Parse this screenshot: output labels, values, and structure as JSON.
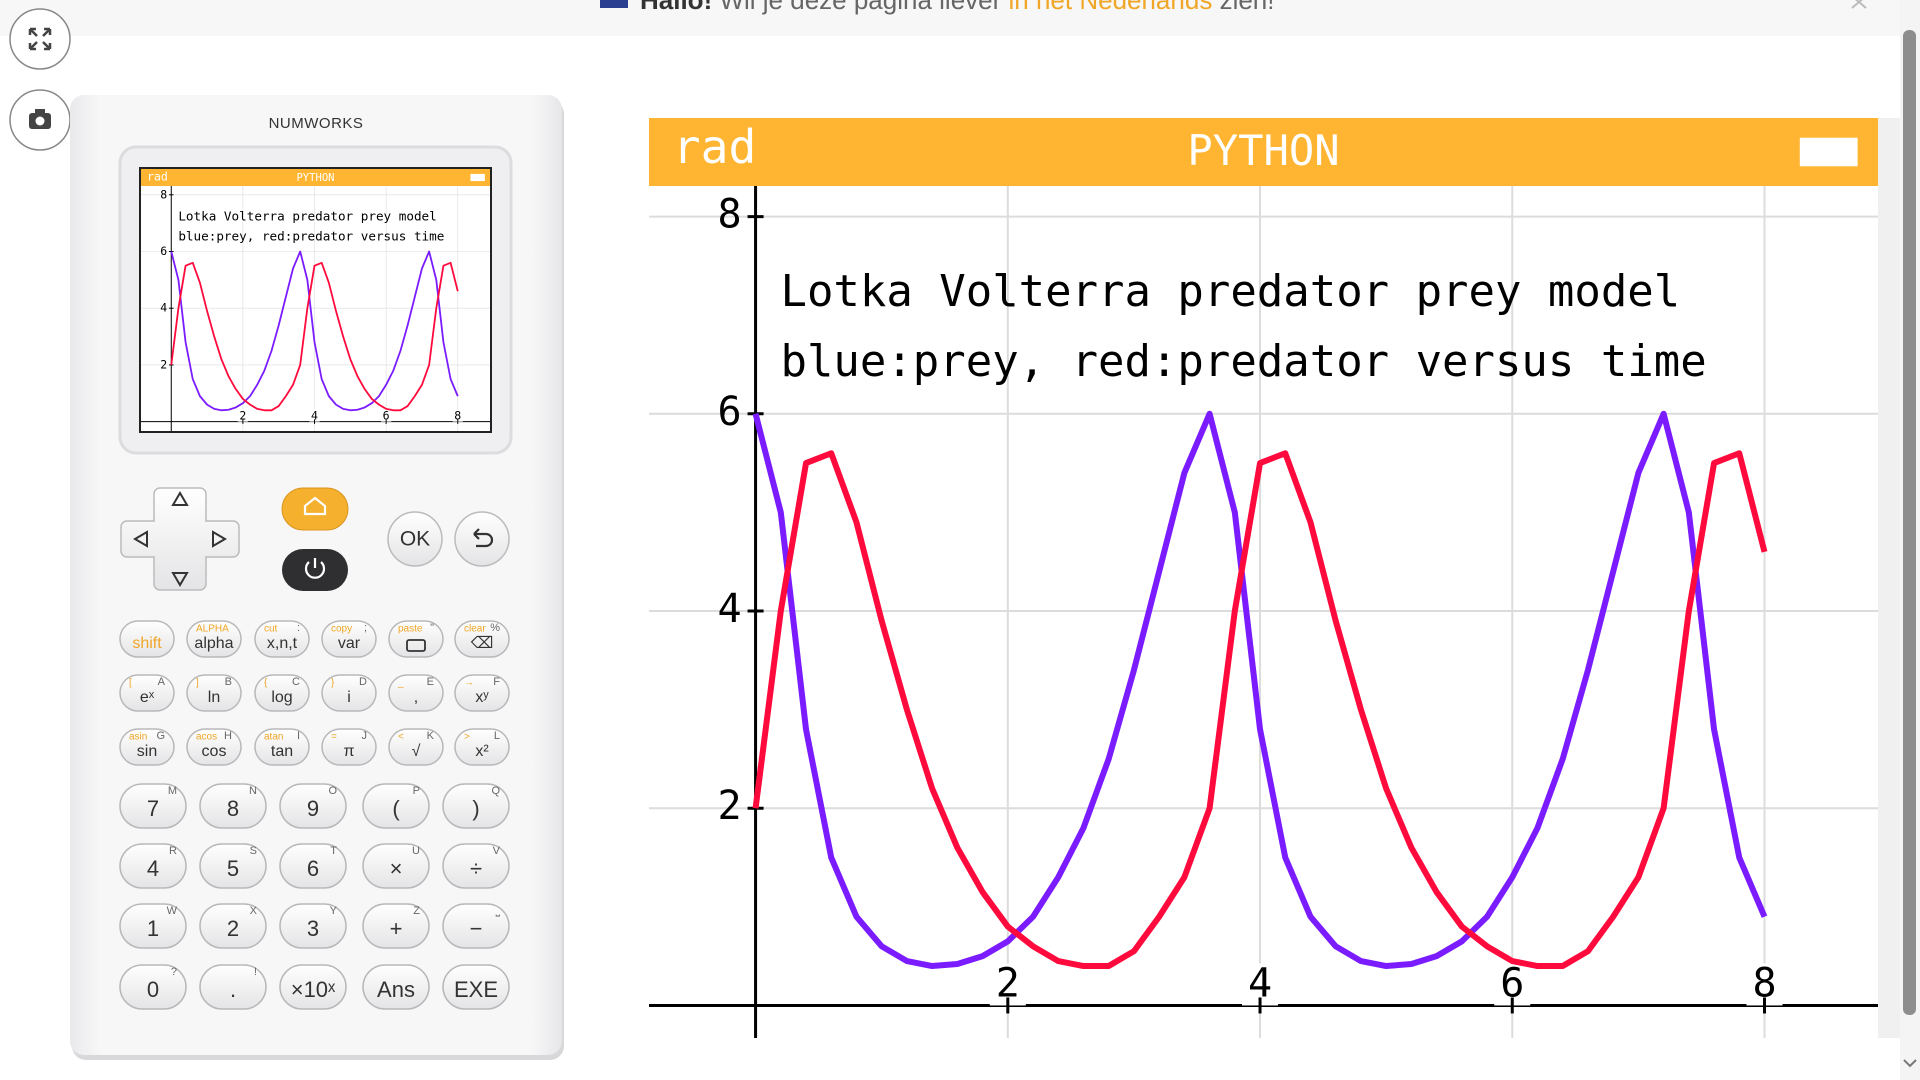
{
  "banner": {
    "greeting": "Hallo!",
    "text_before": "Wil je deze pagina liever",
    "link": "in het Nederlands",
    "text_after": "zien!"
  },
  "calculator": {
    "brand": "NUMWORKS",
    "ok": "OK"
  },
  "keypad": {
    "rows": [
      [
        {
          "label": "shift"
        },
        {
          "label": "alpha",
          "left": "ALPHA"
        },
        {
          "label": "x,n,t",
          "left": "cut",
          "right": ":"
        },
        {
          "label": "var",
          "left": "copy",
          "right": ";"
        },
        {
          "left": "paste",
          "right": "\""
        },
        {
          "label": "⌫",
          "left": "clear",
          "right": "%"
        }
      ],
      [
        {
          "label": "eˣ",
          "left": "[",
          "right": "A"
        },
        {
          "label": "ln",
          "left": "]",
          "right": "B"
        },
        {
          "label": "log",
          "left": "{",
          "right": "C"
        },
        {
          "label": "i",
          "left": "}",
          "right": "D"
        },
        {
          "label": ",",
          "left": "_",
          "right": "E"
        },
        {
          "label": "xʸ",
          "left": "→",
          "right": "F"
        }
      ],
      [
        {
          "label": "sin",
          "left": "asin",
          "right": "G"
        },
        {
          "label": "cos",
          "left": "acos",
          "right": "H"
        },
        {
          "label": "tan",
          "left": "atan",
          "right": "I"
        },
        {
          "label": "π",
          "left": "=",
          "right": "J"
        },
        {
          "label": "√",
          "left": "<",
          "right": "K"
        },
        {
          "label": "x²",
          "left": ">",
          "right": "L"
        }
      ],
      [
        {
          "label": "7",
          "right": "M"
        },
        {
          "label": "8",
          "right": "N"
        },
        {
          "label": "9",
          "right": "O"
        },
        {
          "label": "(",
          "right": "P"
        },
        {
          "label": ")",
          "right": "Q"
        }
      ],
      [
        {
          "label": "4",
          "right": "R"
        },
        {
          "label": "5",
          "right": "S"
        },
        {
          "label": "6",
          "right": "T"
        },
        {
          "label": "×",
          "right": "U"
        },
        {
          "label": "÷",
          "right": "V"
        }
      ],
      [
        {
          "label": "1",
          "right": "W"
        },
        {
          "label": "2",
          "right": "X"
        },
        {
          "label": "3",
          "right": "Y"
        },
        {
          "label": "+",
          "right": "Z"
        },
        {
          "label": "−",
          "right": "⎵"
        }
      ],
      [
        {
          "label": "0",
          "right": "?"
        },
        {
          "label": ".",
          "right": "!"
        },
        {
          "label": "×10ˣ"
        },
        {
          "label": "Ans"
        },
        {
          "label": "EXE"
        }
      ]
    ]
  },
  "chart_data": {
    "type": "line",
    "mode": "rad",
    "title": "PYTHON",
    "annotations": [
      "Lotka Volterra predator prey model",
      "blue:prey, red:predator versus time"
    ],
    "x": [
      0,
      0.2,
      0.4,
      0.6,
      0.8,
      1,
      1.2,
      1.4,
      1.6,
      1.8,
      2,
      2.2,
      2.4,
      2.6,
      2.8,
      3,
      3.2,
      3.4,
      3.6,
      3.8,
      4,
      4.2,
      4.4,
      4.6,
      4.8,
      5,
      5.2,
      5.4,
      5.6,
      5.8,
      6,
      6.2,
      6.4,
      6.6,
      6.8,
      7,
      7.2,
      7.4,
      7.6,
      7.8,
      8
    ],
    "series": [
      {
        "name": "prey",
        "color": "#7a1cff",
        "values": [
          6,
          5,
          2.8,
          1.5,
          0.9,
          0.6,
          0.45,
          0.4,
          0.42,
          0.5,
          0.65,
          0.9,
          1.3,
          1.8,
          2.5,
          3.4,
          4.4,
          5.4,
          6,
          5,
          2.8,
          1.5,
          0.9,
          0.6,
          0.45,
          0.4,
          0.42,
          0.5,
          0.65,
          0.9,
          1.3,
          1.8,
          2.5,
          3.4,
          4.4,
          5.4,
          6,
          5,
          2.8,
          1.5,
          0.9
        ]
      },
      {
        "name": "predator",
        "color": "#ff0a3c",
        "values": [
          2,
          4,
          5.5,
          5.6,
          4.9,
          3.9,
          3,
          2.2,
          1.6,
          1.15,
          0.8,
          0.6,
          0.45,
          0.4,
          0.4,
          0.55,
          0.9,
          1.3,
          2,
          4,
          5.5,
          5.6,
          4.9,
          3.9,
          3,
          2.2,
          1.6,
          1.15,
          0.8,
          0.6,
          0.45,
          0.4,
          0.4,
          0.55,
          0.9,
          1.3,
          2,
          4,
          5.5,
          5.6,
          4.6
        ]
      }
    ],
    "xlim": [
      -0.845,
      8.9
    ],
    "ylim": [
      -0.33,
      8.31
    ],
    "xticks": [
      2,
      4,
      6,
      8
    ],
    "yticks": [
      2,
      4,
      6,
      8
    ],
    "grid": true
  }
}
